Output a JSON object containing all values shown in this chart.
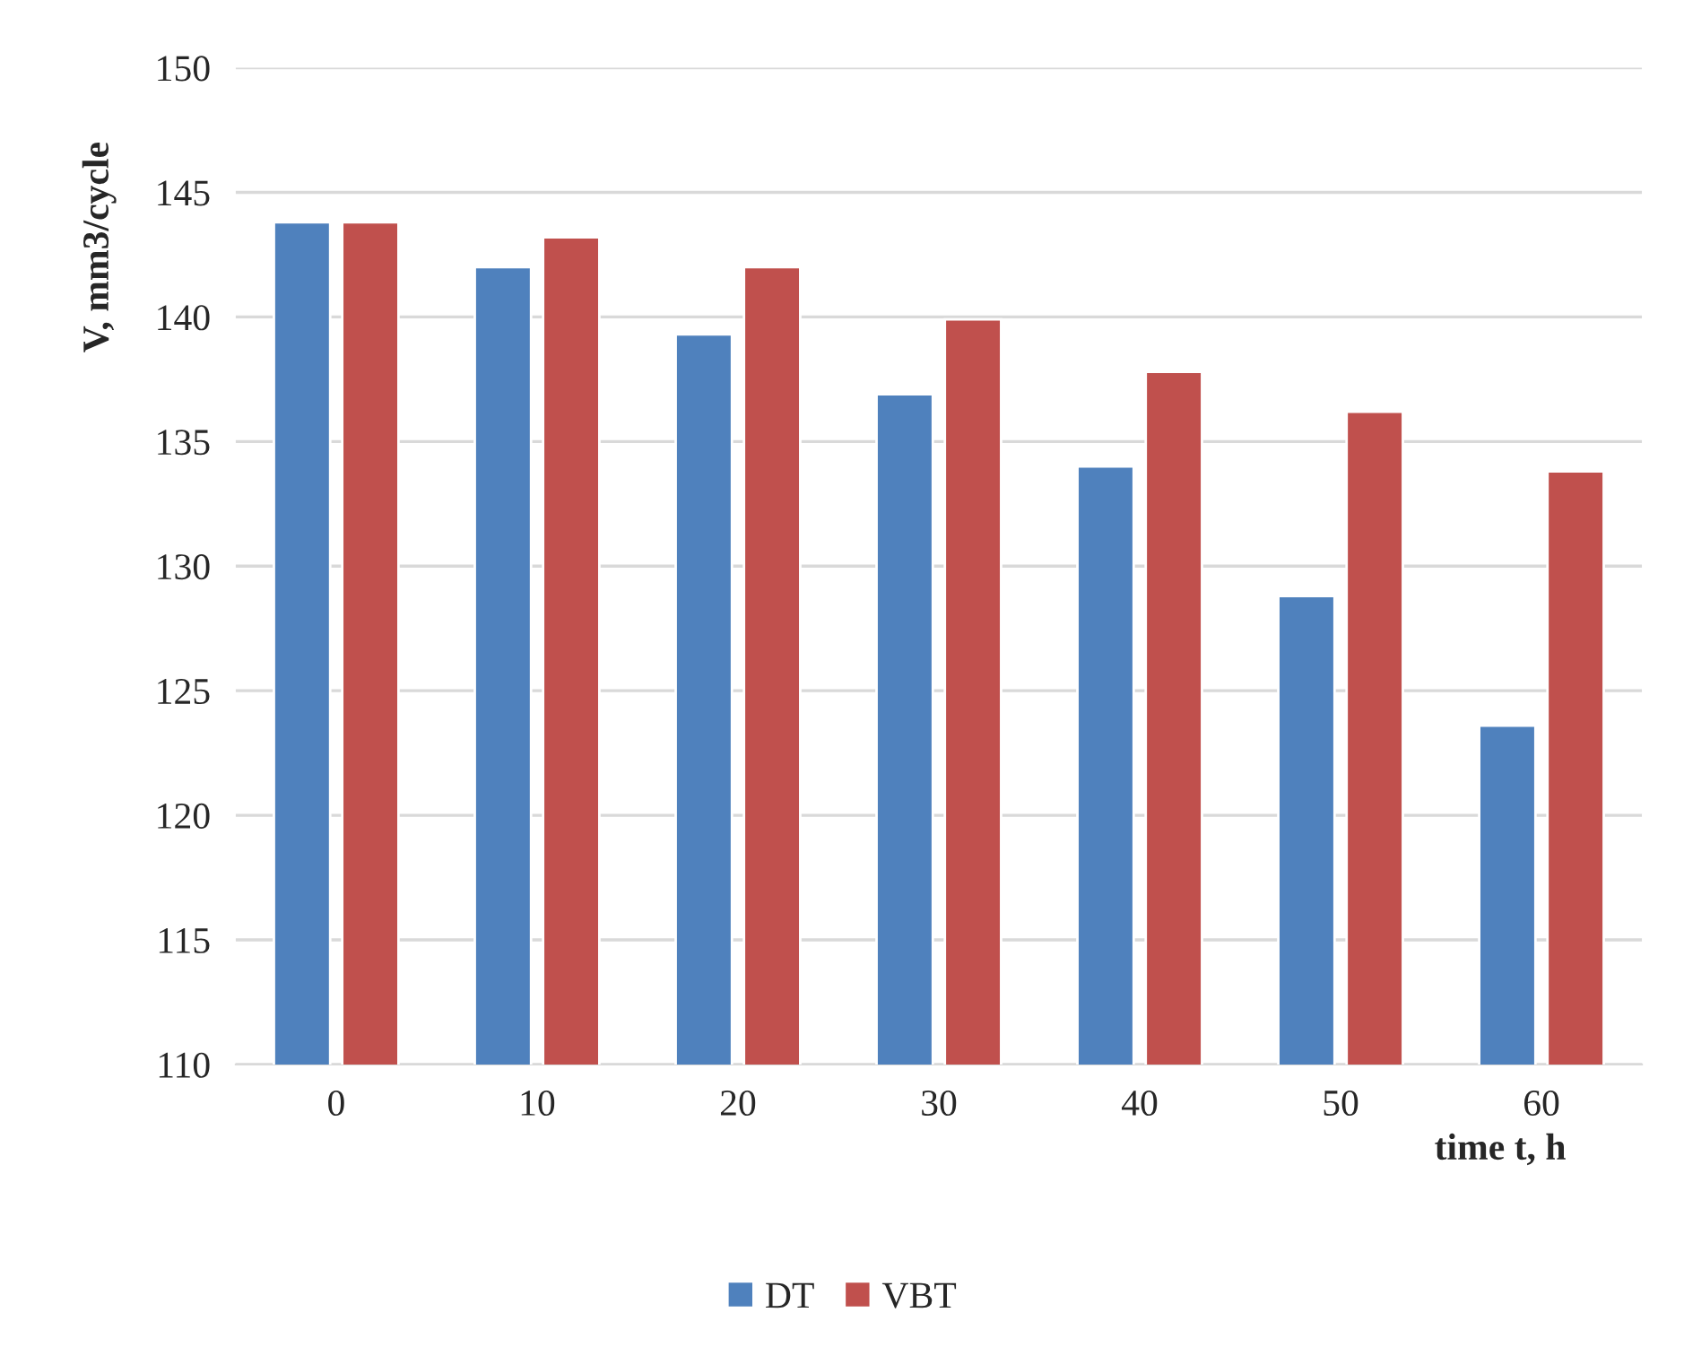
{
  "chart_data": {
    "type": "bar",
    "xlabel": "time t, h",
    "ylabel": "V, mm3/cycle",
    "categories": [
      "0",
      "10",
      "20",
      "30",
      "40",
      "50",
      "60"
    ],
    "series": [
      {
        "name": "DT",
        "color": "#4f81bd",
        "values": [
          143.8,
          142.0,
          139.3,
          136.9,
          134.0,
          128.8,
          123.6
        ]
      },
      {
        "name": "VBT",
        "color": "#c0504d",
        "values": [
          143.8,
          143.2,
          142.0,
          139.9,
          137.8,
          136.2,
          133.8
        ]
      }
    ],
    "ylim": [
      110,
      150
    ],
    "yticks": [
      110,
      115,
      120,
      125,
      130,
      135,
      140,
      145,
      150
    ],
    "grid": "y",
    "legend": "bottom"
  }
}
